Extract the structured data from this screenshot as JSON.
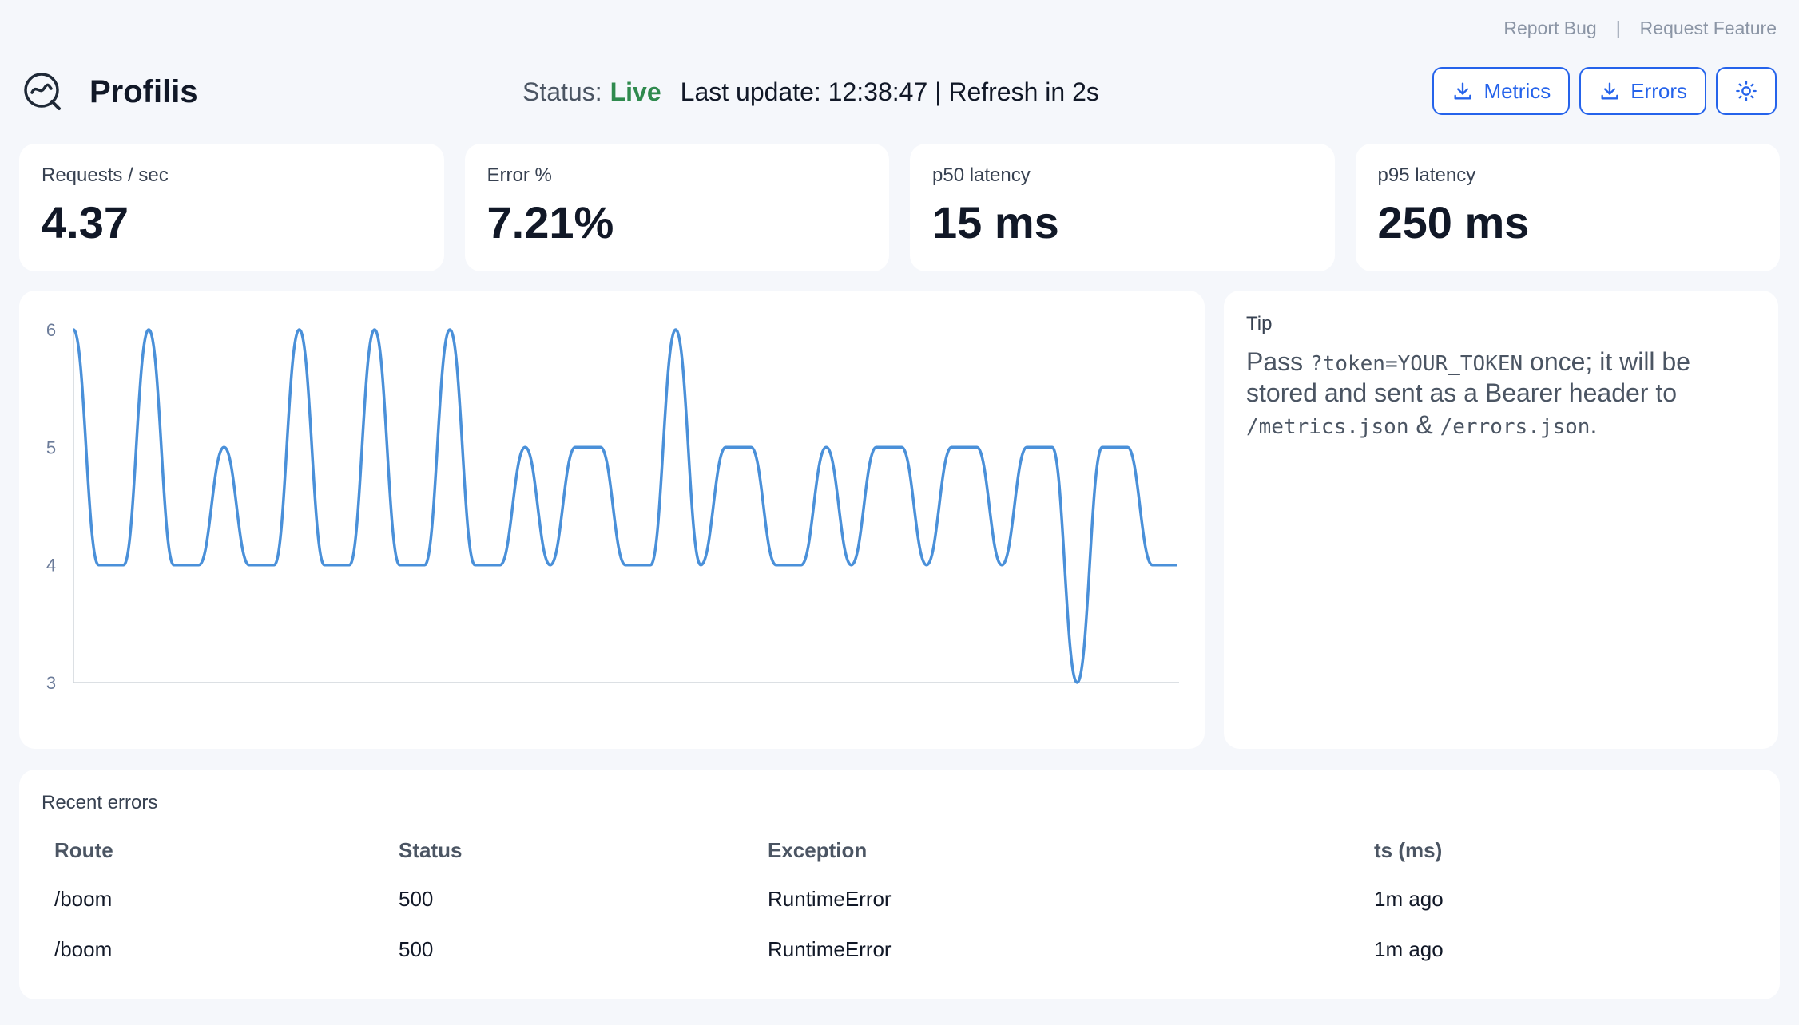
{
  "top_links": {
    "report_bug": "Report Bug",
    "separator": "|",
    "request_feature": "Request Feature"
  },
  "header": {
    "brand": "Profilis",
    "status_label": "Status:",
    "status_value": "Live",
    "update_text": "Last update: 12:38:47 | Refresh in 2s",
    "buttons": {
      "metrics": "Metrics",
      "errors": "Errors"
    }
  },
  "kpis": [
    {
      "label": "Requests / sec",
      "value": "4.37"
    },
    {
      "label": "Error %",
      "value": "7.21%"
    },
    {
      "label": "p50 latency",
      "value": "15 ms"
    },
    {
      "label": "p95 latency",
      "value": "250 ms"
    }
  ],
  "tip": {
    "label": "Tip",
    "t1": "Pass ",
    "code1": "?token=YOUR_TOKEN",
    "t2": " once; it will be stored and sent as a Bearer header to ",
    "code2": "/metrics.json",
    "t3": " & ",
    "code3": "/errors.json",
    "t4": "."
  },
  "chart_data": {
    "type": "line",
    "y_ticks": [
      "6",
      "5",
      "4",
      "3"
    ],
    "ylim": [
      3,
      6
    ],
    "series": [
      {
        "values": [
          6,
          4,
          4,
          6,
          4,
          4,
          5,
          4,
          4,
          6,
          4,
          4,
          6,
          4,
          4,
          6,
          4,
          4,
          5,
          4,
          5,
          5,
          4,
          4,
          6,
          4,
          5,
          5,
          4,
          4,
          5,
          4,
          5,
          5,
          4,
          5,
          5,
          4,
          5,
          5,
          3,
          5,
          5,
          4,
          4
        ]
      }
    ],
    "color": "#4a90d9"
  },
  "errors": {
    "label": "Recent errors",
    "columns": [
      "Route",
      "Status",
      "Exception",
      "ts (ms)"
    ],
    "rows": [
      [
        "/boom",
        "500",
        "RuntimeError",
        "1m ago"
      ],
      [
        "/boom",
        "500",
        "RuntimeError",
        "1m ago"
      ]
    ]
  },
  "colors": {
    "accent": "#2563eb",
    "live": "#2f8a4e",
    "line": "#4a90d9"
  }
}
